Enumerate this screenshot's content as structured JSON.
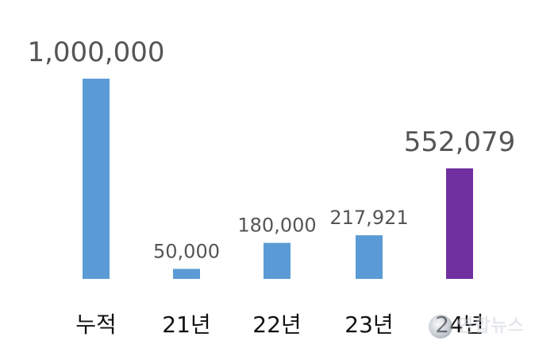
{
  "chart_data": {
    "type": "bar",
    "categories": [
      "누적",
      "21년",
      "22년",
      "23년",
      "24년"
    ],
    "values": [
      1000000,
      50000,
      180000,
      217921,
      552079
    ],
    "data_labels": [
      "1,000,000",
      "50,000",
      "180,000",
      "217,921",
      "552,079"
    ],
    "colors": [
      "#5B9BD5",
      "#5B9BD5",
      "#5B9BD5",
      "#5B9BD5",
      "#7030A0"
    ],
    "title": "",
    "xlabel": "",
    "ylabel": "",
    "ylim": [
      0,
      1000000
    ],
    "grid": false,
    "legend": "none"
  },
  "watermark": {
    "text": "연합뉴스"
  }
}
